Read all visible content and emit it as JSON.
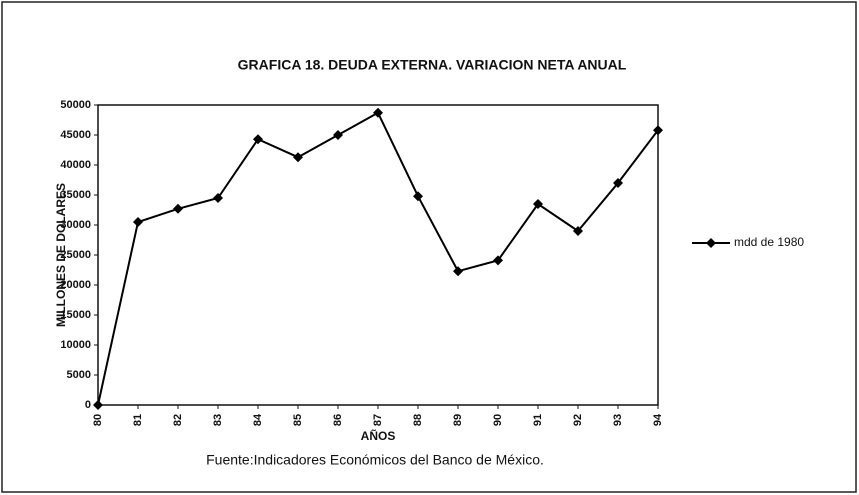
{
  "chart_data": {
    "type": "line",
    "title": "GRAFICA 18. DEUDA EXTERNA. VARIACION NETA ANUAL",
    "y_label": "MILLONES DE DOLARES",
    "x_label": "AÑOS",
    "source": "Fuente:Indicadores Económicos del Banco de México.",
    "categories": [
      "80",
      "81",
      "82",
      "83",
      "84",
      "85",
      "86",
      "87",
      "88",
      "89",
      "90",
      "91",
      "92",
      "93",
      "94"
    ],
    "series": [
      {
        "name": "mdd de 1980",
        "color": "#000000",
        "values": [
          0,
          30500,
          32700,
          34500,
          44300,
          41300,
          45000,
          48700,
          34800,
          22300,
          24100,
          33500,
          29000,
          37000,
          45800
        ]
      }
    ],
    "ylim": [
      0,
      50000
    ],
    "yticks": [
      0,
      5000,
      10000,
      15000,
      20000,
      25000,
      30000,
      35000,
      40000,
      45000,
      50000
    ],
    "legend": "right"
  }
}
